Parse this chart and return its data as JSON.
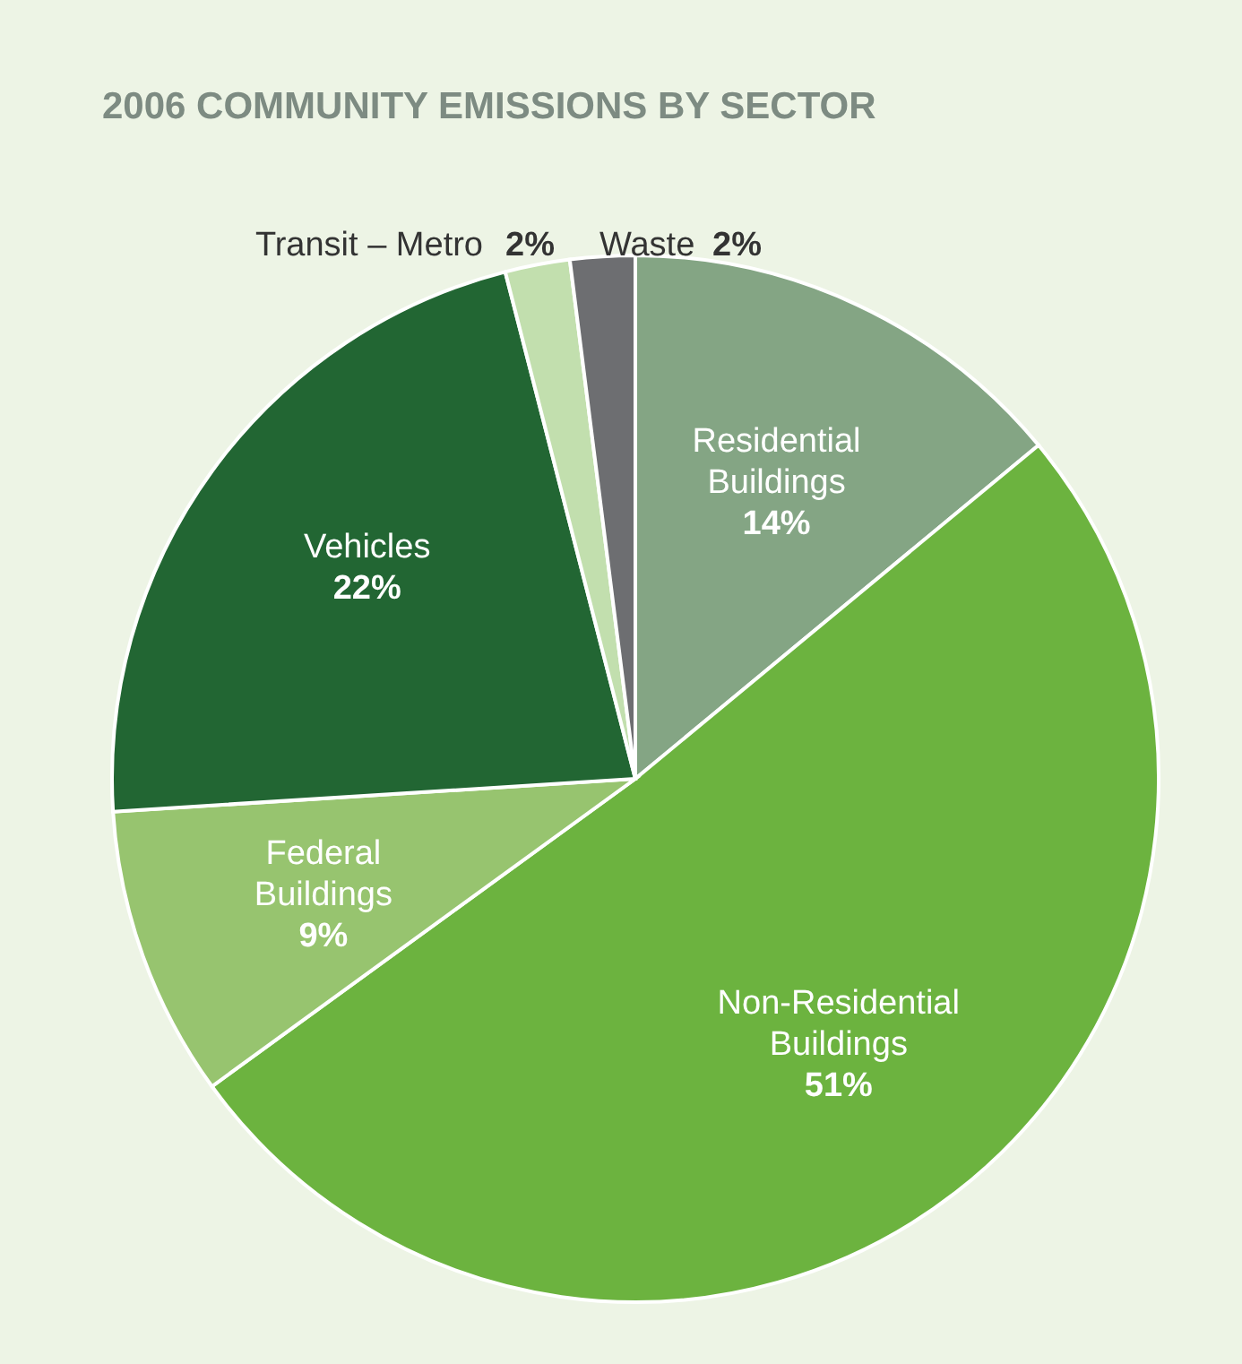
{
  "chart_data": {
    "type": "pie",
    "title": "2006 COMMUNITY EMISSIONS BY SECTOR",
    "categories": [
      "Residential Buildings",
      "Non-Residential Buildings",
      "Federal Buildings",
      "Vehicles",
      "Transit – Metro",
      "Waste"
    ],
    "values": [
      14,
      51,
      9,
      22,
      2,
      2
    ],
    "value_labels": [
      "14%",
      "51%",
      "9%",
      "22%",
      "2%",
      "2%"
    ],
    "colors": [
      "#84a584",
      "#6cb33f",
      "#97c46f",
      "#226633",
      "#c2dfae",
      "#6d6e71"
    ]
  }
}
